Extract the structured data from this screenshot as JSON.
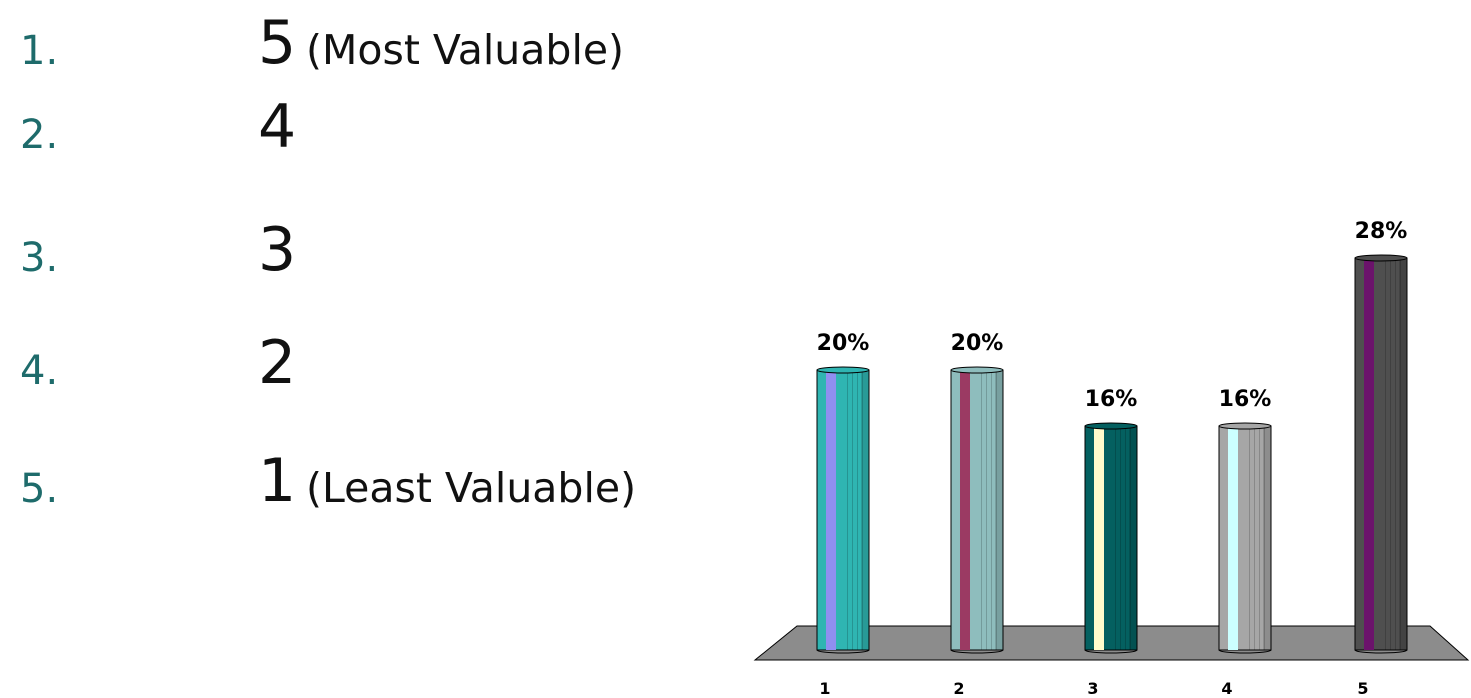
{
  "options": [
    {
      "number": "1.",
      "value": "5",
      "note": "(Most Valuable)"
    },
    {
      "number": "2.",
      "value": "4",
      "note": ""
    },
    {
      "number": "3.",
      "value": "3",
      "note": ""
    },
    {
      "number": "4.",
      "value": "2",
      "note": ""
    },
    {
      "number": "5.",
      "value": "1",
      "note": "(Least Valuable)"
    }
  ],
  "chart_data": {
    "type": "bar",
    "title": "",
    "xlabel": "",
    "ylabel": "",
    "categories": [
      "1",
      "2",
      "3",
      "4",
      "5"
    ],
    "values": [
      20,
      20,
      16,
      16,
      28
    ],
    "value_labels": [
      "20%",
      "20%",
      "16%",
      "16%",
      "28%"
    ],
    "unit": "%",
    "ylim": [
      0,
      28
    ],
    "grid": false,
    "legend": "none",
    "style": "3d-cylinder",
    "floor_color": "#8c8c8c",
    "bar_colors": [
      {
        "body": "#2fb5b2",
        "stripe": "#8f8ff0"
      },
      {
        "body": "#8ebdbd",
        "stripe": "#9b3a63"
      },
      {
        "body": "#046060",
        "stripe": "#fffccc"
      },
      {
        "body": "#a6a6a6",
        "stripe": "#ccffff"
      },
      {
        "body": "#4f4f4f",
        "stripe": "#6b136b"
      }
    ]
  }
}
